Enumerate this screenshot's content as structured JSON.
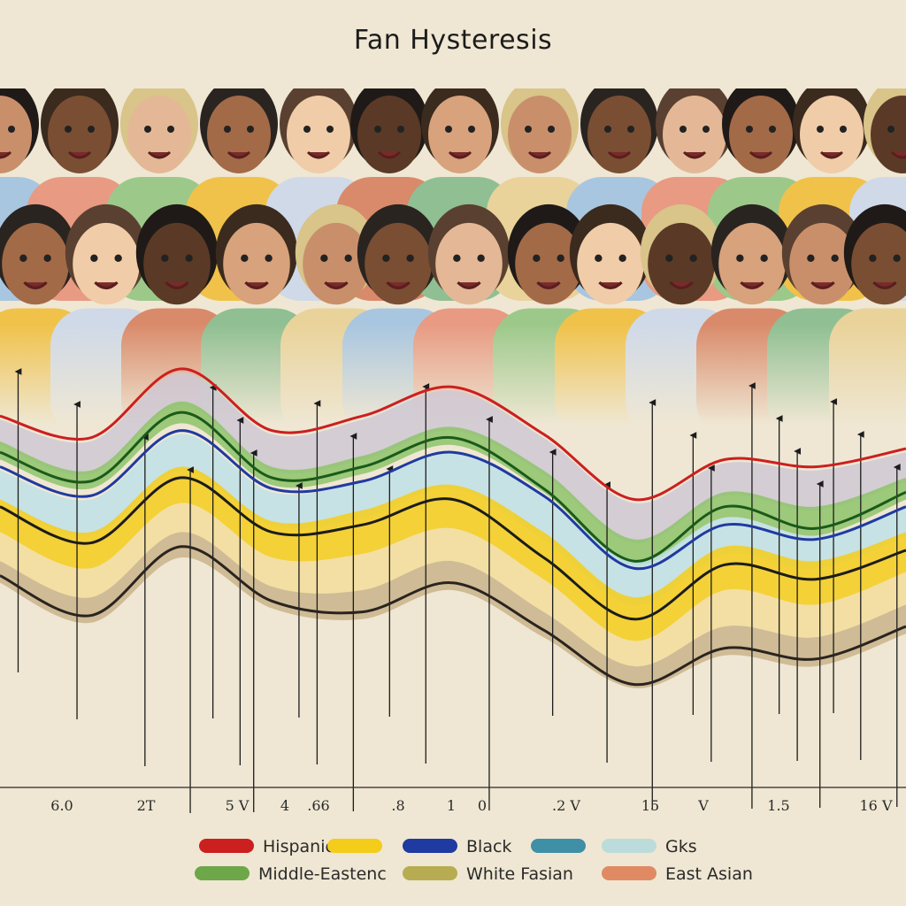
{
  "title": "Fan Hysteresis",
  "chart_data": {
    "type": "line",
    "title": "Fan Hysteresis",
    "x_tick_labels": [
      "6.0",
      "2T",
      "5 V",
      "4",
      ".66",
      ".8",
      "1",
      "0",
      ".2 V",
      "15",
      "V",
      "1.5",
      "16 V"
    ],
    "ylim": [
      0,
      1
    ],
    "grid": false,
    "legend_position": "bottom",
    "colors": {
      "hispanic": "#cc1f1f",
      "yellow": "#f4cc1a",
      "black": "#1f3aa0",
      "teal": "#3f8fa6",
      "light_blue": "#bcdcdc",
      "middle_eastern": "#6ea64a",
      "white_fasian": "#b8ac52",
      "east_asian": "#e08a64"
    },
    "legend": [
      {
        "name": "Hispanic",
        "color": "#cc1f1f"
      },
      {
        "name": "",
        "color": "#f4cc1a"
      },
      {
        "name": "Black",
        "color": "#1f3aa0"
      },
      {
        "name": "",
        "color": "#3f8fa6"
      },
      {
        "name": "Gks",
        "color": "#bcdcdc"
      },
      {
        "name": "Middle-Eastenc",
        "color": "#6ea64a"
      },
      {
        "name": "White Fasian",
        "color": "#b8ac52"
      },
      {
        "name": "East Asian",
        "color": "#e08a64"
      }
    ],
    "x": [
      0,
      1,
      2,
      3,
      4,
      5,
      6,
      7,
      8,
      9,
      10
    ],
    "series": [
      {
        "name": "Hispanic",
        "color": "#cc1f1f",
        "values": [
          0.78,
          0.72,
          0.91,
          0.74,
          0.78,
          0.86,
          0.73,
          0.55,
          0.66,
          0.64,
          0.69
        ]
      },
      {
        "name": "Middle-Eastenc",
        "color": "#1a5a1a",
        "values": [
          0.68,
          0.6,
          0.79,
          0.61,
          0.64,
          0.72,
          0.58,
          0.38,
          0.53,
          0.47,
          0.57
        ]
      },
      {
        "name": "Black",
        "color": "#1f3aa0",
        "values": [
          0.64,
          0.56,
          0.74,
          0.58,
          0.6,
          0.68,
          0.56,
          0.36,
          0.48,
          0.44,
          0.53
        ]
      },
      {
        "name": "White Fasian",
        "color": "#1c1c1c",
        "values": [
          0.53,
          0.43,
          0.61,
          0.46,
          0.48,
          0.55,
          0.39,
          0.22,
          0.37,
          0.33,
          0.41
        ]
      },
      {
        "name": "East Asian",
        "color": "#2a2420",
        "values": [
          0.34,
          0.23,
          0.42,
          0.27,
          0.24,
          0.32,
          0.19,
          0.04,
          0.14,
          0.11,
          0.2
        ]
      }
    ],
    "bands": [
      {
        "color": "#cfc8d3",
        "upper": [
          0.77,
          0.71,
          0.9,
          0.73,
          0.77,
          0.85,
          0.72,
          0.54,
          0.65,
          0.63,
          0.68
        ],
        "lower": [
          0.7,
          0.62,
          0.81,
          0.63,
          0.66,
          0.74,
          0.62,
          0.43,
          0.56,
          0.52,
          0.6
        ]
      },
      {
        "color": "#8dc36a",
        "upper": [
          0.71,
          0.63,
          0.82,
          0.64,
          0.67,
          0.75,
          0.63,
          0.44,
          0.57,
          0.53,
          0.61
        ],
        "lower": [
          0.66,
          0.58,
          0.76,
          0.59,
          0.62,
          0.7,
          0.57,
          0.37,
          0.5,
          0.45,
          0.55
        ]
      },
      {
        "color": "#bfe0e6",
        "upper": [
          0.63,
          0.55,
          0.73,
          0.57,
          0.6,
          0.68,
          0.56,
          0.38,
          0.5,
          0.45,
          0.53
        ],
        "lower": [
          0.55,
          0.45,
          0.63,
          0.48,
          0.5,
          0.58,
          0.44,
          0.26,
          0.4,
          0.36,
          0.45
        ]
      },
      {
        "color": "#f4cc1a",
        "upper": [
          0.55,
          0.46,
          0.64,
          0.49,
          0.52,
          0.59,
          0.46,
          0.28,
          0.42,
          0.38,
          0.46
        ],
        "lower": [
          0.46,
          0.36,
          0.54,
          0.39,
          0.4,
          0.47,
          0.33,
          0.16,
          0.3,
          0.26,
          0.35
        ]
      },
      {
        "color": "#f3dd9a",
        "upper": [
          0.46,
          0.36,
          0.54,
          0.39,
          0.4,
          0.47,
          0.33,
          0.16,
          0.3,
          0.26,
          0.35
        ],
        "lower": [
          0.38,
          0.28,
          0.46,
          0.31,
          0.3,
          0.38,
          0.24,
          0.09,
          0.2,
          0.17,
          0.26
        ]
      },
      {
        "color": "#c9b38a",
        "upper": [
          0.38,
          0.28,
          0.46,
          0.31,
          0.3,
          0.38,
          0.24,
          0.09,
          0.2,
          0.17,
          0.26
        ],
        "lower": [
          0.32,
          0.21,
          0.39,
          0.25,
          0.22,
          0.3,
          0.17,
          0.03,
          0.12,
          0.09,
          0.18
        ]
      }
    ],
    "arrows": [
      0.02,
      0.085,
      0.16,
      0.21,
      0.235,
      0.265,
      0.28,
      0.33,
      0.35,
      0.39,
      0.43,
      0.47,
      0.54,
      0.61,
      0.67,
      0.72,
      0.765,
      0.785,
      0.83,
      0.86,
      0.88,
      0.905,
      0.92,
      0.95,
      0.99
    ]
  }
}
